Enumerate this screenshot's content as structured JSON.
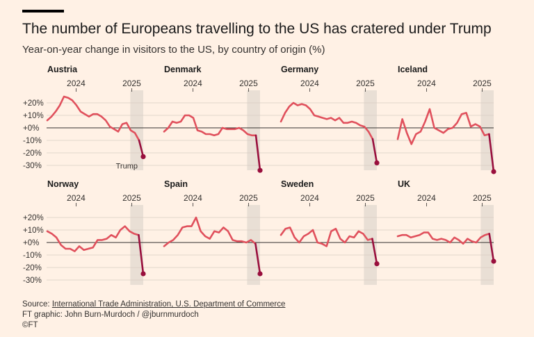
{
  "header": {
    "title": "The number of Europeans travelling to the US has cratered under Trump",
    "subtitle": "Year-on-year change in visitors to the US, by country of origin (%)"
  },
  "footer": {
    "source_prefix": "Source: ",
    "source_link": "International Trade Administration, U.S. Department of Commerce",
    "credit": "FT graphic: John Burn-Murdoch / @jburnmurdoch",
    "copyright": "©FT"
  },
  "colors": {
    "background": "#FFF1E5",
    "line": "#E0505C",
    "recent": "#990F3D",
    "grid": "#D9CCC1",
    "zero": "#33302E",
    "shade": "#E9DFD5"
  },
  "chart_data": {
    "type": "line",
    "layout": "small-multiples",
    "x_period": "monthly, Jan 2023 - Mar 2025",
    "x_ticks": [
      "2024",
      "2025"
    ],
    "y_ticks": [
      "+20%",
      "+10%",
      "+0%",
      "-10%",
      "-20%",
      "-30%"
    ],
    "ylim": [
      -35,
      25
    ],
    "annotation": "Trump",
    "highlight_from_index": 25,
    "series": [
      {
        "name": "Austria",
        "values": [
          6,
          9,
          13,
          18,
          25,
          24,
          22,
          18,
          13,
          11,
          9,
          11,
          11,
          9,
          6,
          1,
          -1,
          -3,
          3,
          4,
          -2,
          -4,
          -10,
          -23
        ]
      },
      {
        "name": "Denmark",
        "values": [
          -3,
          0,
          5,
          4,
          5,
          10,
          10,
          8,
          -2,
          -3,
          -5,
          -5,
          -6,
          -5,
          0,
          -1,
          -1,
          -1,
          0,
          -2,
          -5,
          -6,
          -6,
          -34
        ]
      },
      {
        "name": "Germany",
        "values": [
          5,
          12,
          17,
          20,
          18,
          19,
          18,
          15,
          10,
          9,
          8,
          7,
          8,
          6,
          8,
          4,
          4,
          5,
          4,
          2,
          1,
          -3,
          -9,
          -28
        ]
      },
      {
        "name": "Iceland",
        "values": [
          -9,
          7,
          -4,
          -13,
          -5,
          -3,
          5,
          15,
          0,
          -2,
          -4,
          -1,
          0,
          4,
          11,
          12,
          1,
          3,
          1,
          -6,
          -5,
          -35
        ]
      },
      {
        "name": "Norway",
        "values": [
          9,
          7,
          4,
          -2,
          -5,
          -5,
          -7,
          -3,
          -6,
          -5,
          -4,
          2,
          2,
          3,
          6,
          4,
          10,
          13,
          9,
          7,
          6,
          -25
        ]
      },
      {
        "name": "Spain",
        "values": [
          -3,
          0,
          2,
          6,
          12,
          13,
          13,
          20,
          9,
          5,
          3,
          9,
          8,
          12,
          9,
          2,
          1,
          1,
          0,
          2,
          -1,
          -25
        ]
      },
      {
        "name": "Sweden",
        "values": [
          6,
          11,
          12,
          4,
          0,
          5,
          7,
          10,
          0,
          -1,
          -3,
          9,
          11,
          3,
          0,
          5,
          4,
          9,
          7,
          2,
          3,
          -17
        ]
      },
      {
        "name": "UK",
        "values": [
          5,
          6,
          6,
          4,
          5,
          6,
          8,
          8,
          3,
          2,
          3,
          2,
          0,
          4,
          2,
          -1,
          3,
          1,
          0,
          4,
          6,
          7,
          -15
        ]
      }
    ]
  }
}
